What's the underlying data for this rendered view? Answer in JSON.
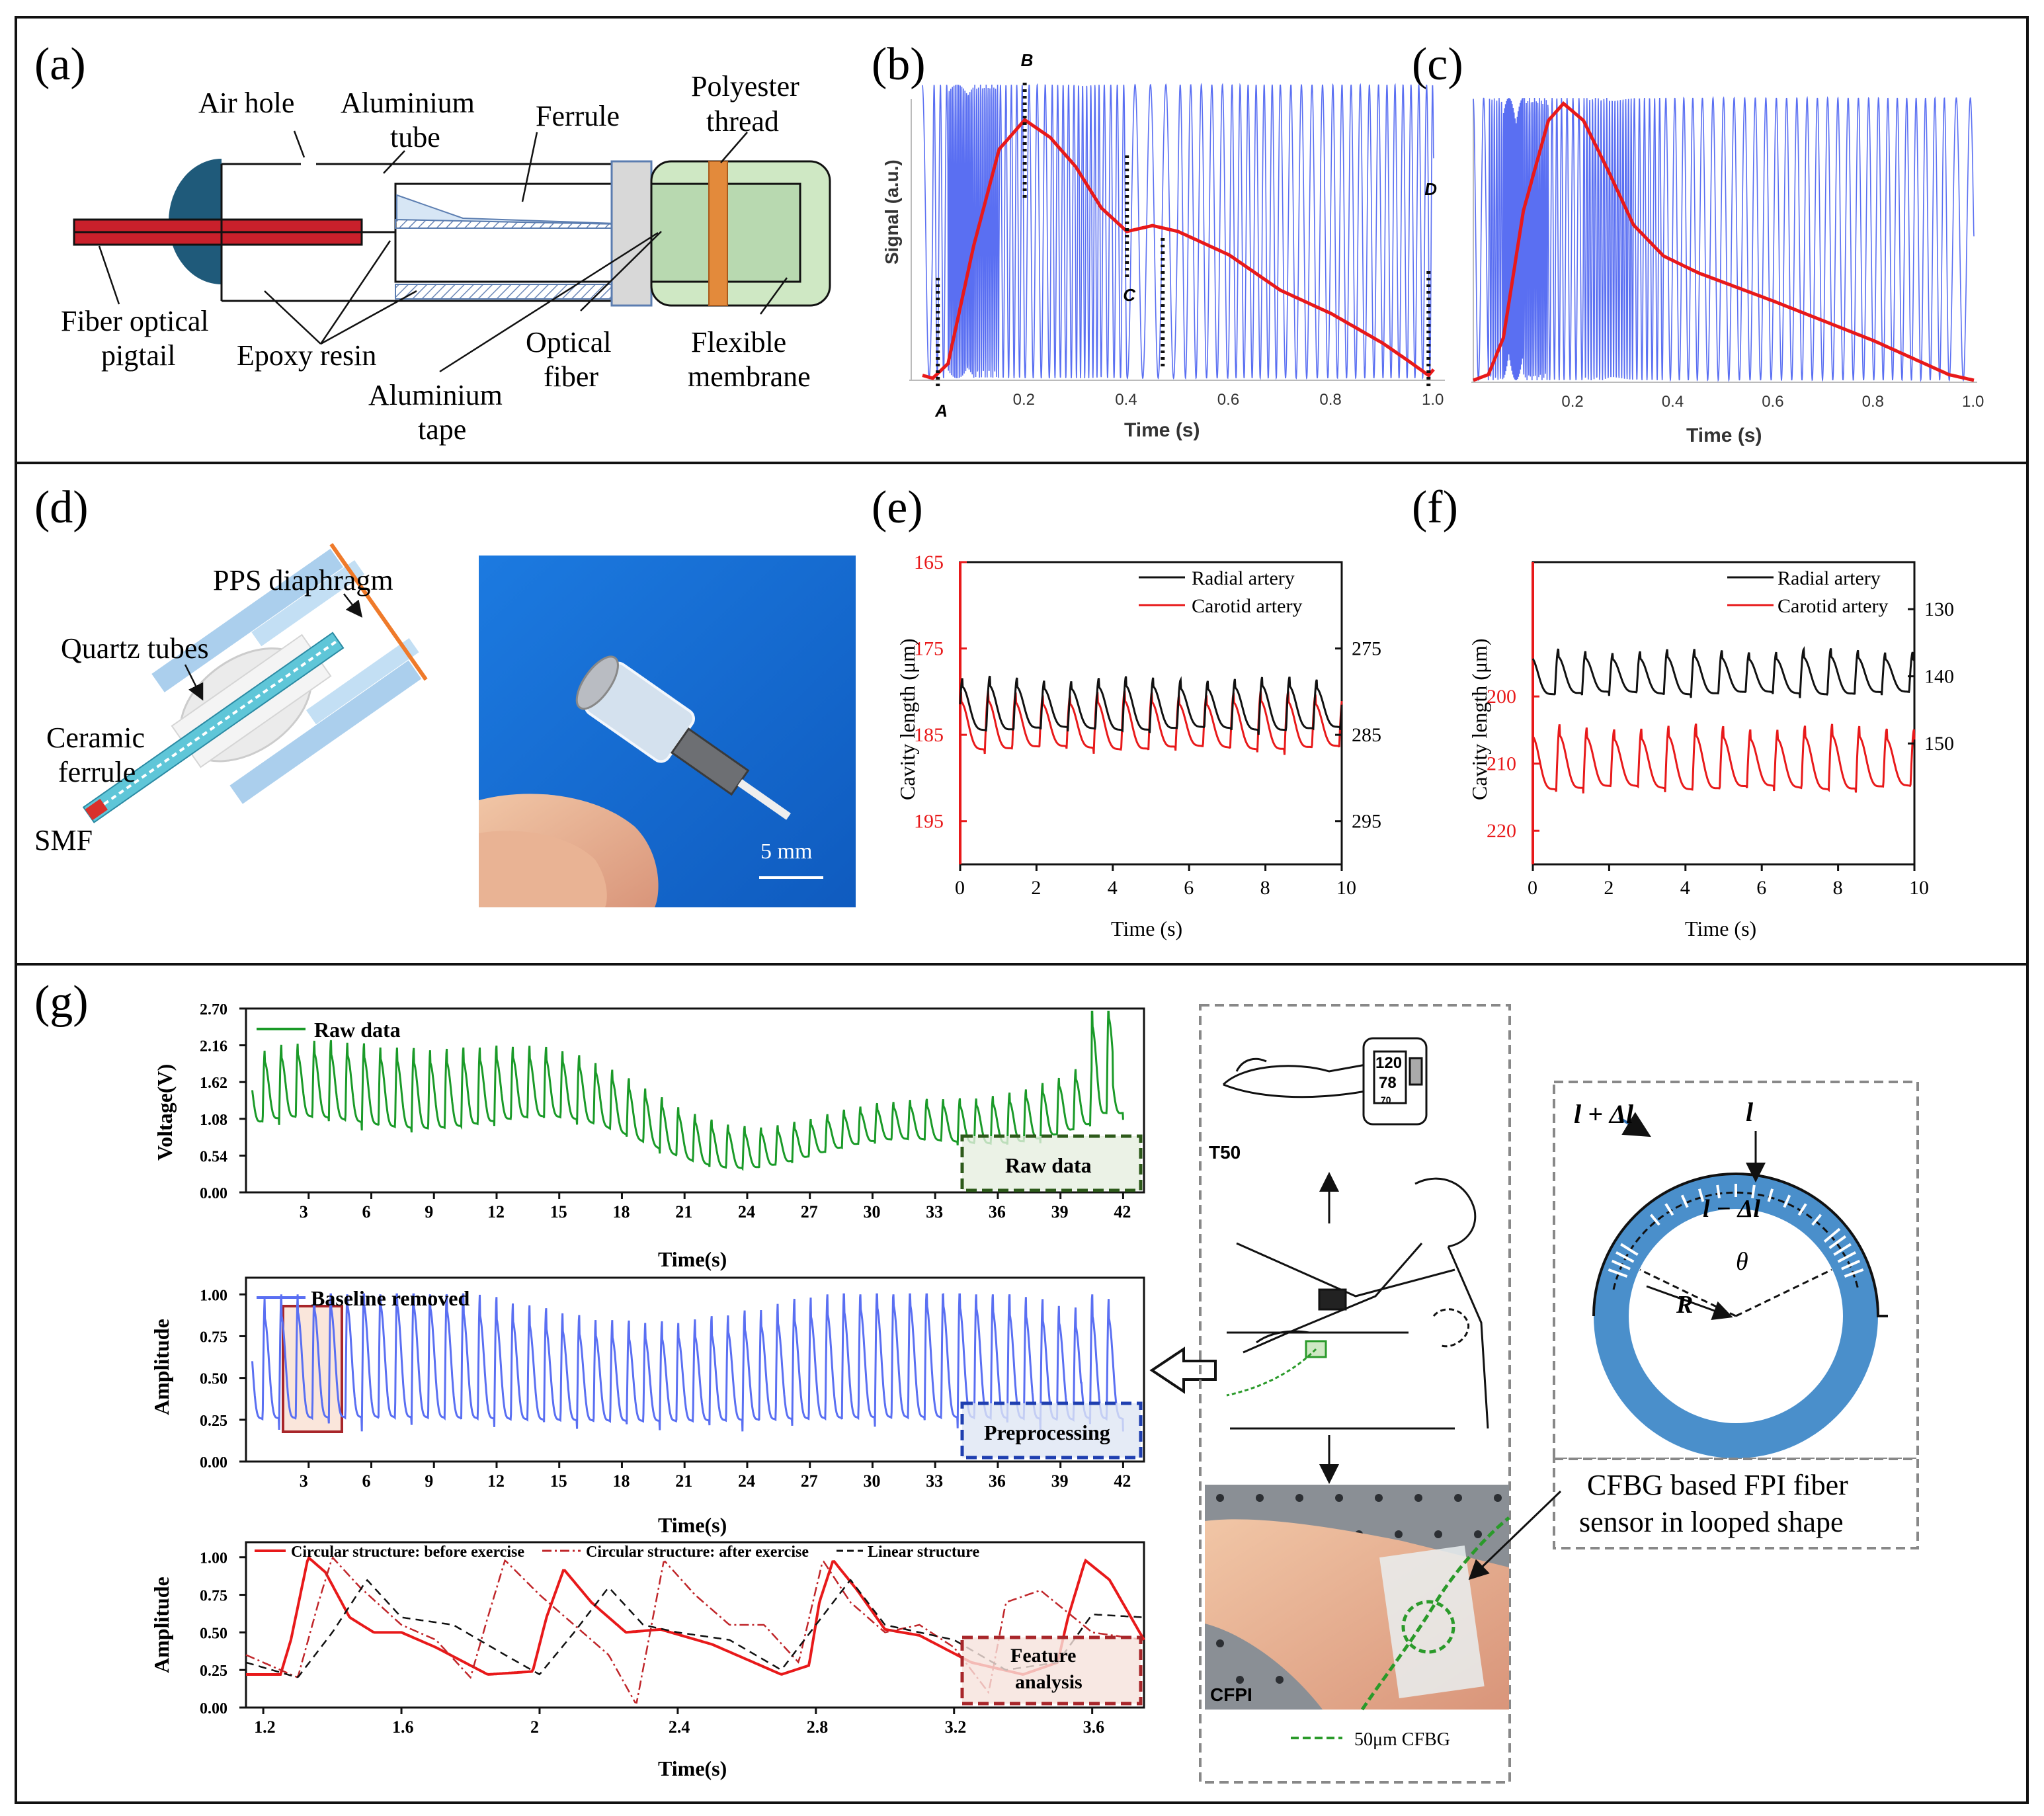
{
  "colors": {
    "red": "#e8191a",
    "blue": "#5a6ff2",
    "green": "#1a9a28",
    "black": "#111111",
    "photo_blue": "#1a6fd6",
    "cfbg_green": "#2a9a2a",
    "ring_blue": "#4a8fcb"
  },
  "panels": {
    "a": {
      "letter": "(a)",
      "labels": {
        "air_hole": "Air hole",
        "aluminium_tube_1": "Aluminium",
        "aluminium_tube_2": "tube",
        "ferrule": "Ferrule",
        "polyester_1": "Polyester",
        "polyester_2": "thread",
        "fiber_pigtail_1": "Fiber optical",
        "fiber_pigtail_2": "pigtail",
        "epoxy": "Epoxy resin",
        "optical_fiber_1": "Optical",
        "optical_fiber_2": "fiber",
        "flexible_1": "Flexible",
        "flexible_2": "membrane",
        "al_tape_1": "Aluminium",
        "al_tape_2": "tape"
      }
    },
    "b": {
      "letter": "(b)",
      "ylabel": "Signal (a.u.)",
      "xlabel": "Time (s)",
      "xticks": [
        "0.2",
        "0.4",
        "0.6",
        "0.8",
        "1.0"
      ],
      "markers": [
        "A",
        "B",
        "C",
        "D"
      ]
    },
    "c": {
      "letter": "(c)",
      "xlabel": "Time (s)",
      "xticks": [
        "0.2",
        "0.4",
        "0.6",
        "0.8",
        "1.0"
      ]
    },
    "d": {
      "letter": "(d)",
      "labels": {
        "pps": "PPS diaphragm",
        "quartz": "Quartz tubes",
        "ceramic_1": "Ceramic",
        "ceramic_2": "ferrule",
        "smf": "SMF"
      },
      "scale_bar": "5 mm"
    },
    "e": {
      "letter": "(e)",
      "ylabel": "Cavity length (μm)",
      "xlabel": "Time (s)",
      "xticks": [
        "0",
        "2",
        "4",
        "6",
        "8",
        "10"
      ],
      "left_ticks": [
        "165",
        "175",
        "185",
        "195"
      ],
      "right_ticks": [
        "275",
        "285",
        "295"
      ],
      "legend": [
        "Radial artery",
        "Carotid artery"
      ]
    },
    "f": {
      "letter": "(f)",
      "ylabel": "Cavity length (μm)",
      "xlabel": "Time (s)",
      "xticks": [
        "0",
        "2",
        "4",
        "6",
        "8",
        "10"
      ],
      "left_ticks": [
        "200",
        "210",
        "220"
      ],
      "right_ticks": [
        "130",
        "140",
        "150"
      ],
      "legend": [
        "Radial artery",
        "Carotid artery"
      ]
    },
    "g": {
      "letter": "(g)",
      "raw": {
        "ylabel": "Voltage(V)",
        "xlabel": "Time(s)",
        "yticks": [
          "0.00",
          "0.54",
          "1.08",
          "1.62",
          "2.16",
          "2.70"
        ],
        "xticks": [
          "3",
          "6",
          "9",
          "12",
          "15",
          "18",
          "21",
          "24",
          "27",
          "30",
          "33",
          "36",
          "39",
          "42"
        ],
        "legend": "Raw data",
        "box_label": "Raw data"
      },
      "base": {
        "ylabel": "Amplitude",
        "xlabel": "Time(s)",
        "yticks": [
          "0.00",
          "0.25",
          "0.50",
          "0.75",
          "1.00"
        ],
        "xticks": [
          "3",
          "6",
          "9",
          "12",
          "15",
          "18",
          "21",
          "24",
          "27",
          "30",
          "33",
          "36",
          "39",
          "42"
        ],
        "legend": "Baseline removed",
        "box_label": "Preprocessing"
      },
      "feat": {
        "ylabel": "Amplitude",
        "xlabel": "Time(s)",
        "yticks": [
          "0.00",
          "0.25",
          "0.50",
          "0.75",
          "1.00"
        ],
        "xticks": [
          "1.2",
          "1.6",
          "2",
          "2.4",
          "2.8",
          "3.2",
          "3.6"
        ],
        "legend": [
          "Circular structure: before exercise",
          "Circular structure: after exercise",
          "Linear structure"
        ],
        "box_label_1": "Feature",
        "box_label_2": "analysis"
      },
      "device": {
        "t50": "T50",
        "monitor_1": "120",
        "monitor_2": "78",
        "monitor_3": "70",
        "cfpi": "CFPI",
        "cfbg": "50μm CFBG"
      },
      "ring": {
        "l_plus": "l + Δl",
        "l": "l",
        "l_minus": "l − Δl",
        "theta": "θ",
        "r": "R"
      },
      "caption_1": "CFBG based FPI fiber",
      "caption_2": "sensor in looped shape"
    }
  },
  "chart_data": [
    {
      "panel": "b",
      "type": "line",
      "xlabel": "Time (s)",
      "ylabel": "Signal (a.u.)",
      "xlim": [
        0,
        1.0
      ],
      "series": [
        {
          "name": "pulse waveform",
          "color": "red",
          "x": [
            0.0,
            0.02,
            0.05,
            0.1,
            0.15,
            0.2,
            0.25,
            0.3,
            0.35,
            0.4,
            0.45,
            0.5,
            0.6,
            0.7,
            0.8,
            0.9,
            0.95,
            0.99,
            1.0
          ],
          "y": [
            0.01,
            0.0,
            0.05,
            0.45,
            0.78,
            0.88,
            0.82,
            0.72,
            0.58,
            0.5,
            0.52,
            0.5,
            0.42,
            0.3,
            0.22,
            0.12,
            0.06,
            0.01,
            0.03
          ]
        },
        {
          "name": "interference signal",
          "color": "blue"
        }
      ],
      "annotations": [
        {
          "label": "A",
          "x": 0.03
        },
        {
          "label": "B",
          "x": 0.2
        },
        {
          "label": "C",
          "x": 0.4
        },
        {
          "label": "D",
          "x": 0.99
        }
      ]
    },
    {
      "panel": "c",
      "type": "line",
      "xlabel": "Time (s)",
      "xlim": [
        0,
        1.0
      ],
      "series": [
        {
          "name": "pulse waveform",
          "color": "red",
          "x": [
            0.0,
            0.03,
            0.06,
            0.1,
            0.15,
            0.18,
            0.22,
            0.27,
            0.32,
            0.38,
            0.45,
            0.6,
            0.8,
            0.95,
            1.0
          ],
          "y": [
            0.0,
            0.02,
            0.15,
            0.6,
            0.92,
            0.98,
            0.92,
            0.74,
            0.55,
            0.44,
            0.38,
            0.28,
            0.14,
            0.02,
            0.0
          ]
        },
        {
          "name": "interference signal",
          "color": "blue"
        }
      ]
    },
    {
      "panel": "e",
      "type": "line",
      "xlabel": "Time (s)",
      "ylabel": "Cavity length (μm)",
      "xlim": [
        0,
        10
      ],
      "left_ylim": [
        165,
        200
      ],
      "right_ylim": [
        265,
        300
      ],
      "series": [
        {
          "name": "Carotid artery",
          "axis": "left",
          "color": "red",
          "beats": 14,
          "mean": 184,
          "amplitude": 4
        },
        {
          "name": "Radial artery",
          "axis": "right",
          "color": "black",
          "beats": 14,
          "mean": 282,
          "amplitude": 3.5
        }
      ]
    },
    {
      "panel": "f",
      "type": "line",
      "xlabel": "Time (s)",
      "ylabel": "Cavity length (μm)",
      "xlim": [
        0,
        10
      ],
      "left_ylim": [
        180,
        225
      ],
      "right_ylim": [
        123,
        168
      ],
      "series": [
        {
          "name": "Radial artery",
          "axis": "right",
          "color": "black",
          "beats": 14,
          "mean": 140,
          "amplitude": 3.5
        },
        {
          "name": "Carotid artery",
          "axis": "left",
          "color": "red",
          "beats": 14,
          "mean": 210,
          "amplitude": 5
        }
      ]
    },
    {
      "panel": "g-raw",
      "type": "line",
      "xlabel": "Time(s)",
      "ylabel": "Voltage(V)",
      "xlim": [
        0,
        43
      ],
      "ylim": [
        0,
        2.7
      ],
      "series": [
        {
          "name": "Raw data",
          "color": "green",
          "beats": 53
        }
      ]
    },
    {
      "panel": "g-baseline",
      "type": "line",
      "xlabel": "Time(s)",
      "ylabel": "Amplitude",
      "xlim": [
        0,
        43
      ],
      "ylim": [
        0,
        1.1
      ],
      "series": [
        {
          "name": "Baseline removed",
          "color": "blue",
          "beats": 53
        }
      ]
    },
    {
      "panel": "g-feature",
      "type": "line",
      "xlabel": "Time(s)",
      "ylabel": "Amplitude",
      "xlim": [
        1.15,
        3.75
      ],
      "ylim": [
        0,
        1.1
      ],
      "series": [
        {
          "name": "Circular structure: before exercise",
          "style": "solid",
          "color": "red",
          "x": [
            1.15,
            1.25,
            1.28,
            1.33,
            1.38,
            1.45,
            1.52,
            1.6,
            1.7,
            1.85,
            1.98,
            2.02,
            2.07,
            2.15,
            2.25,
            2.35,
            2.5,
            2.7,
            2.78,
            2.81,
            2.85,
            2.92,
            3.0,
            3.1,
            3.25,
            3.4,
            3.5,
            3.53,
            3.58,
            3.65,
            3.75
          ],
          "y": [
            0.22,
            0.22,
            0.45,
            1.0,
            0.9,
            0.6,
            0.5,
            0.5,
            0.4,
            0.22,
            0.24,
            0.6,
            0.92,
            0.7,
            0.5,
            0.52,
            0.42,
            0.22,
            0.28,
            0.7,
            0.98,
            0.78,
            0.52,
            0.48,
            0.3,
            0.22,
            0.3,
            0.6,
            0.98,
            0.85,
            0.45
          ]
        },
        {
          "name": "Circular structure: after exercise",
          "style": "dashdot",
          "color": "red",
          "x": [
            1.15,
            1.3,
            1.36,
            1.4,
            1.48,
            1.6,
            1.7,
            1.8,
            1.85,
            1.9,
            2.0,
            2.1,
            2.2,
            2.28,
            2.32,
            2.36,
            2.45,
            2.55,
            2.65,
            2.75,
            2.82,
            2.9,
            3.0,
            3.1,
            3.2,
            3.3,
            3.35,
            3.45,
            3.6,
            3.75
          ],
          "y": [
            0.35,
            0.2,
            0.7,
            1.0,
            0.8,
            0.55,
            0.45,
            0.2,
            0.6,
            0.98,
            0.75,
            0.55,
            0.35,
            0.02,
            0.5,
            0.98,
            0.75,
            0.55,
            0.55,
            0.3,
            0.98,
            0.7,
            0.5,
            0.55,
            0.4,
            0.1,
            0.7,
            0.78,
            0.5,
            0.45
          ]
        },
        {
          "name": "Linear structure",
          "style": "dashed",
          "color": "black",
          "x": [
            1.15,
            1.3,
            1.4,
            1.5,
            1.6,
            1.75,
            1.9,
            2.0,
            2.1,
            2.2,
            2.3,
            2.4,
            2.55,
            2.7,
            2.8,
            2.9,
            3.0,
            3.1,
            3.2,
            3.35,
            3.5,
            3.6,
            3.75
          ],
          "y": [
            0.3,
            0.2,
            0.5,
            0.85,
            0.6,
            0.55,
            0.35,
            0.22,
            0.5,
            0.8,
            0.55,
            0.5,
            0.45,
            0.25,
            0.55,
            0.85,
            0.55,
            0.5,
            0.45,
            0.25,
            0.3,
            0.62,
            0.6
          ]
        }
      ]
    }
  ]
}
